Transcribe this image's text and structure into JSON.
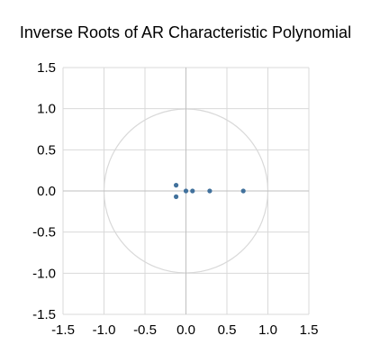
{
  "chart_data": {
    "type": "scatter",
    "title": "Inverse Roots of AR Characteristic Polynomial",
    "xlabel": "",
    "ylabel": "",
    "xlim": [
      -1.5,
      1.5
    ],
    "ylim": [
      -1.5,
      1.5
    ],
    "x_ticks": [
      "-1.5",
      "-1.0",
      "-0.5",
      "0.0",
      "0.5",
      "1.0",
      "1.5"
    ],
    "y_ticks": [
      "1.5",
      "1.0",
      "0.5",
      "0.0",
      "-0.5",
      "-1.0",
      "-1.5"
    ],
    "grid": true,
    "unit_circle": true,
    "points": [
      {
        "x": -0.12,
        "y": 0.07
      },
      {
        "x": -0.12,
        "y": -0.07
      },
      {
        "x": 0.0,
        "y": 0.0
      },
      {
        "x": 0.08,
        "y": 0.0
      },
      {
        "x": 0.29,
        "y": 0.0
      },
      {
        "x": 0.7,
        "y": 0.0
      }
    ],
    "colors": {
      "points": "#41719c",
      "grid": "#d9d9d9",
      "circle": "#d9d9d9",
      "zero_line": "#bfbfbf"
    }
  }
}
